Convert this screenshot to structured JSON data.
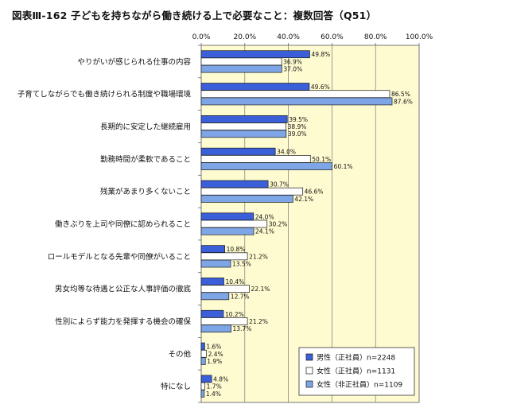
{
  "title": "図表Ⅲ-162 子どもを持ちながら働き続ける上で必要なこと：複数回答（Q51）",
  "chart_data": {
    "type": "bar",
    "orientation": "horizontal",
    "xlim": [
      0,
      100
    ],
    "x_ticks": [
      "0.0%",
      "20.0%",
      "40.0%",
      "60.0%",
      "80.0%",
      "100.0%"
    ],
    "categories": [
      "やりがいが感じられる仕事の内容",
      "子育てしながらでも働き続けられる制度や職場環境",
      "長期的に安定した継続雇用",
      "勤務時間が柔軟であること",
      "残業があまり多くないこと",
      "働きぶりを上司や同僚に認められること",
      "ロールモデルとなる先輩や同僚がいること",
      "男女均等な待遇と公正な人事評価の徹底",
      "性別によらず能力を発揮する機会の確保",
      "その他",
      "特になし"
    ],
    "series": [
      {
        "name": "男性（正社員）n=2248",
        "color": "#3b5fd9",
        "values": [
          49.8,
          49.6,
          39.5,
          34.0,
          30.7,
          24.0,
          10.8,
          10.4,
          10.2,
          1.6,
          4.8
        ]
      },
      {
        "name": "女性（正社員）n=1131",
        "color": "#ffffff",
        "values": [
          36.9,
          86.5,
          38.9,
          50.1,
          46.6,
          30.2,
          21.2,
          22.1,
          21.2,
          2.4,
          1.7
        ]
      },
      {
        "name": "女性（非正社員）n=1109",
        "color": "#7ea6e6",
        "values": [
          37.0,
          87.6,
          39.0,
          60.1,
          42.1,
          24.1,
          13.5,
          12.7,
          13.7,
          1.9,
          1.4
        ]
      }
    ],
    "value_labels": [
      [
        "49.8%",
        "49.6%",
        "39.5%",
        "34.0%",
        "30.7%",
        "24.0%",
        "10.8%",
        "10.4%",
        "10.2%",
        "1.6%",
        "4.8%"
      ],
      [
        "36.9%",
        "86.5%",
        "38.9%",
        "50.1%",
        "46.6%",
        "30.2%",
        "21.2%",
        "22.1%",
        "21.2%",
        "2.4%",
        "1.7%"
      ],
      [
        "37.0%",
        "87.6%",
        "39.0%",
        "60.1%",
        "42.1%",
        "24.1%",
        "13.5%",
        "12.7%",
        "13.7%",
        "1.9%",
        "1.4%"
      ]
    ],
    "plot_background": "#fffbd0",
    "grid": true,
    "legend_position": "bottom-right"
  }
}
